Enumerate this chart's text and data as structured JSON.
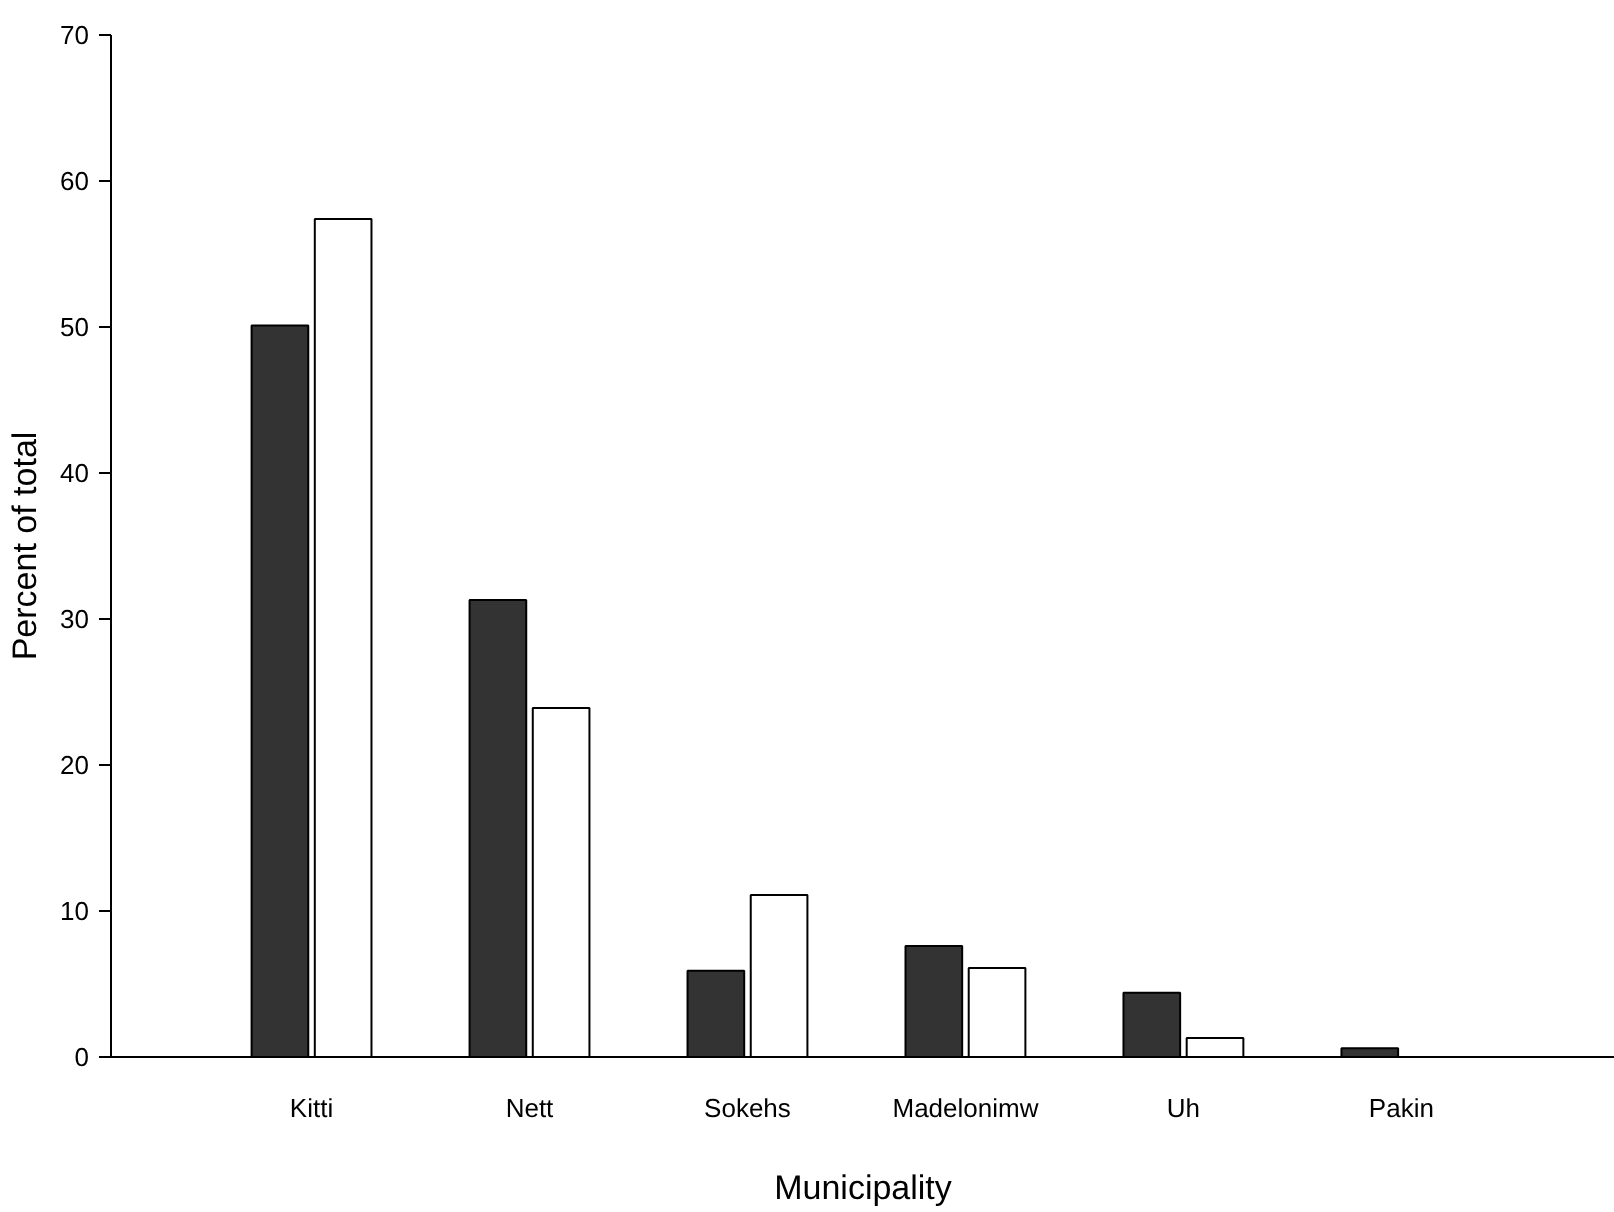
{
  "chart_data": {
    "type": "bar",
    "xlabel": "Municipality",
    "ylabel": "Percent of total",
    "categories": [
      "Kitti",
      "Nett",
      "Sokehs",
      "Madelonimw",
      "Uh",
      "Pakin"
    ],
    "series": [
      {
        "color": "#333333",
        "values": [
          50.1,
          31.3,
          5.9,
          7.6,
          4.4,
          0.6
        ]
      },
      {
        "color": "#ffffff",
        "values": [
          57.4,
          23.9,
          11.1,
          6.1,
          1.3,
          null
        ]
      }
    ],
    "ylim": [
      0,
      70
    ],
    "yticks": [
      0,
      10,
      20,
      30,
      40,
      50,
      60,
      70
    ],
    "grid": false
  }
}
